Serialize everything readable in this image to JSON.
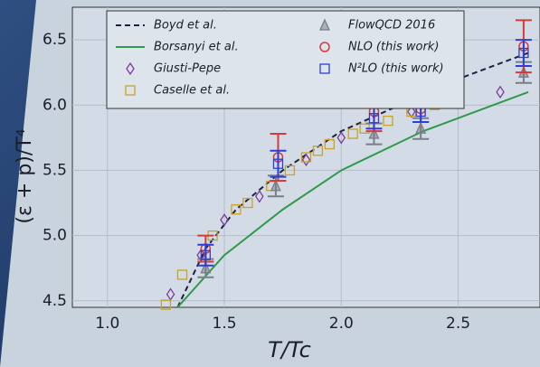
{
  "chart_data": {
    "type": "line",
    "x_label": "T/Tc",
    "y_label": "(ε + p)/T⁴",
    "xlim": [
      0.85,
      2.85
    ],
    "ylim": [
      4.45,
      6.75
    ],
    "xticks": [
      {
        "value": 1.0,
        "label": "1.0"
      },
      1.5,
      {
        "value": 2.0,
        "label": "2.0"
      },
      2.5
    ],
    "yticks": [
      4.5,
      {
        "value": 5.0,
        "label": "5.0"
      },
      5.5,
      {
        "value": 6.0,
        "label": "6.0"
      },
      6.5
    ],
    "grid": true,
    "legend": "upper-left",
    "series": [
      {
        "name": "Boyd et al.",
        "color": "#1c2340",
        "style": "dashed-line",
        "x": [
          1.3,
          1.42,
          1.55,
          1.75,
          2.0,
          2.15,
          2.5,
          2.8
        ],
        "values": [
          4.45,
          4.9,
          5.2,
          5.5,
          5.8,
          5.92,
          6.2,
          6.4
        ]
      },
      {
        "name": "Borsanyi et al.",
        "color": "#2e9a4a",
        "style": "line",
        "x": [
          1.3,
          1.5,
          1.75,
          2.0,
          2.35,
          2.8
        ],
        "values": [
          4.45,
          4.85,
          5.2,
          5.5,
          5.8,
          6.1
        ]
      },
      {
        "name": "Giusti-Pepe",
        "color": "#7a3c96",
        "style": "diamond",
        "x": [
          1.27,
          1.4,
          1.5,
          1.65,
          1.85,
          2.0,
          2.3,
          2.68
        ],
        "values": [
          4.55,
          4.85,
          5.12,
          5.3,
          5.58,
          5.75,
          5.95,
          6.1
        ]
      },
      {
        "name": "Caselle et al.",
        "color": "#c9a227",
        "style": "square",
        "x": [
          1.25,
          1.32,
          1.45,
          1.55,
          1.6,
          1.7,
          1.78,
          1.85,
          1.9,
          1.95,
          2.05,
          2.1,
          2.2,
          2.3,
          2.4,
          2.5
        ],
        "values": [
          4.47,
          4.7,
          5.0,
          5.2,
          5.25,
          5.38,
          5.5,
          5.6,
          5.65,
          5.7,
          5.78,
          5.82,
          5.88,
          5.95,
          6.0,
          6.08
        ]
      },
      {
        "name": "FlowQCD 2016",
        "color": "#7a7e86",
        "style": "triangle",
        "x": [
          1.42,
          1.72,
          2.14,
          2.34,
          2.78
        ],
        "values": [
          4.75,
          5.38,
          5.78,
          5.82,
          6.25
        ],
        "errors": [
          0.07,
          0.08,
          0.08,
          0.08,
          0.08
        ]
      },
      {
        "name": "NLO (this work)",
        "color": "#d63a3a",
        "style": "circle",
        "x": [
          1.42,
          1.73,
          2.14,
          2.34,
          2.78
        ],
        "values": [
          4.9,
          5.6,
          5.95,
          5.97,
          6.45
        ],
        "errors": [
          0.1,
          0.18,
          0.15,
          0.1,
          0.2
        ]
      },
      {
        "name": "N²LO (this work)",
        "color": "#2c3fd8",
        "style": "square",
        "x": [
          1.42,
          1.73,
          2.14,
          2.34,
          2.78
        ],
        "values": [
          4.85,
          5.55,
          5.9,
          5.95,
          6.4
        ],
        "errors": [
          0.08,
          0.1,
          0.08,
          0.08,
          0.1
        ]
      }
    ]
  }
}
